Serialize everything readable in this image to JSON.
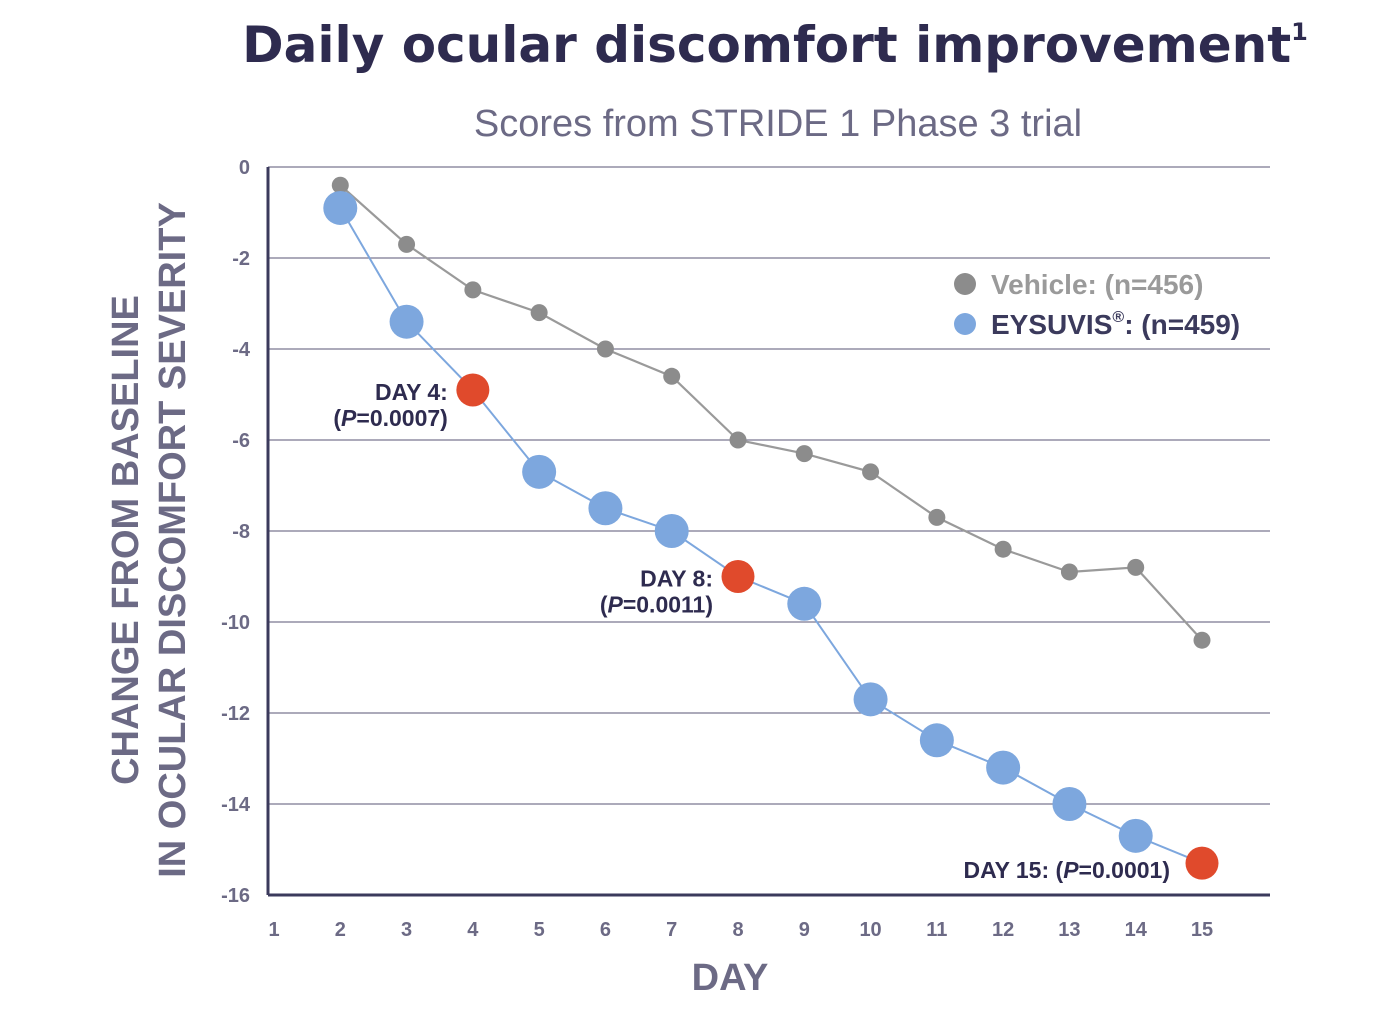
{
  "chart_data": {
    "type": "line",
    "title": "Daily ocular discomfort improvement",
    "title_superscript": "1",
    "subtitle": "Scores from STRIDE 1 Phase 3 trial",
    "xlabel": "DAY",
    "ylabel_line1": "CHANGE FROM BASELINE",
    "ylabel_line2": "IN OCULAR DISCOMFORT SEVERITY",
    "x_ticks": [
      "1",
      "2",
      "3",
      "4",
      "5",
      "6",
      "7",
      "8",
      "9",
      "10",
      "11",
      "12",
      "13",
      "14",
      "15"
    ],
    "y_ticks": [
      "0",
      "-2",
      "-4",
      "-6",
      "-8",
      "-10",
      "-12",
      "-14",
      "-16"
    ],
    "xlim": [
      1,
      15.5
    ],
    "ylim": [
      -16,
      0
    ],
    "grid": "horizontal",
    "legend_position": "top-right",
    "colors": {
      "vehicle": "#8c8c8c",
      "vehicle_line": "#9a9a9a",
      "eysuvis": "#7da7de",
      "eysuvis_line": "#7da7de",
      "highlight": "#e04a2c",
      "grid": "#7a7890",
      "axis": "#3b3a5c"
    },
    "x": [
      2,
      3,
      4,
      5,
      6,
      7,
      8,
      9,
      10,
      11,
      12,
      13,
      14,
      15
    ],
    "series": [
      {
        "key": "vehicle",
        "legend_name": "Vehicle:",
        "legend_n": "(n=456)",
        "values": [
          -0.4,
          -1.7,
          -2.7,
          -3.2,
          -4.0,
          -4.6,
          -6.0,
          -6.3,
          -6.7,
          -7.7,
          -8.4,
          -8.9,
          -8.8,
          -10.4
        ]
      },
      {
        "key": "eysuvis",
        "legend_name": "EYSUVIS",
        "legend_sup": "®",
        "legend_n": ": (n=459)",
        "values": [
          -0.9,
          -3.4,
          -4.9,
          -6.7,
          -7.5,
          -8.0,
          -9.0,
          -9.6,
          -11.7,
          -12.6,
          -13.2,
          -14.0,
          -14.7,
          -15.3
        ]
      }
    ],
    "highlight_days": [
      4,
      8,
      15
    ],
    "annotations": [
      {
        "day": 4,
        "label": "DAY 4:",
        "p_value": "0.0007"
      },
      {
        "day": 8,
        "label": "DAY 8:",
        "p_value": "0.0011"
      },
      {
        "day": 15,
        "label": "DAY 15:",
        "p_value": "0.0001"
      }
    ]
  }
}
